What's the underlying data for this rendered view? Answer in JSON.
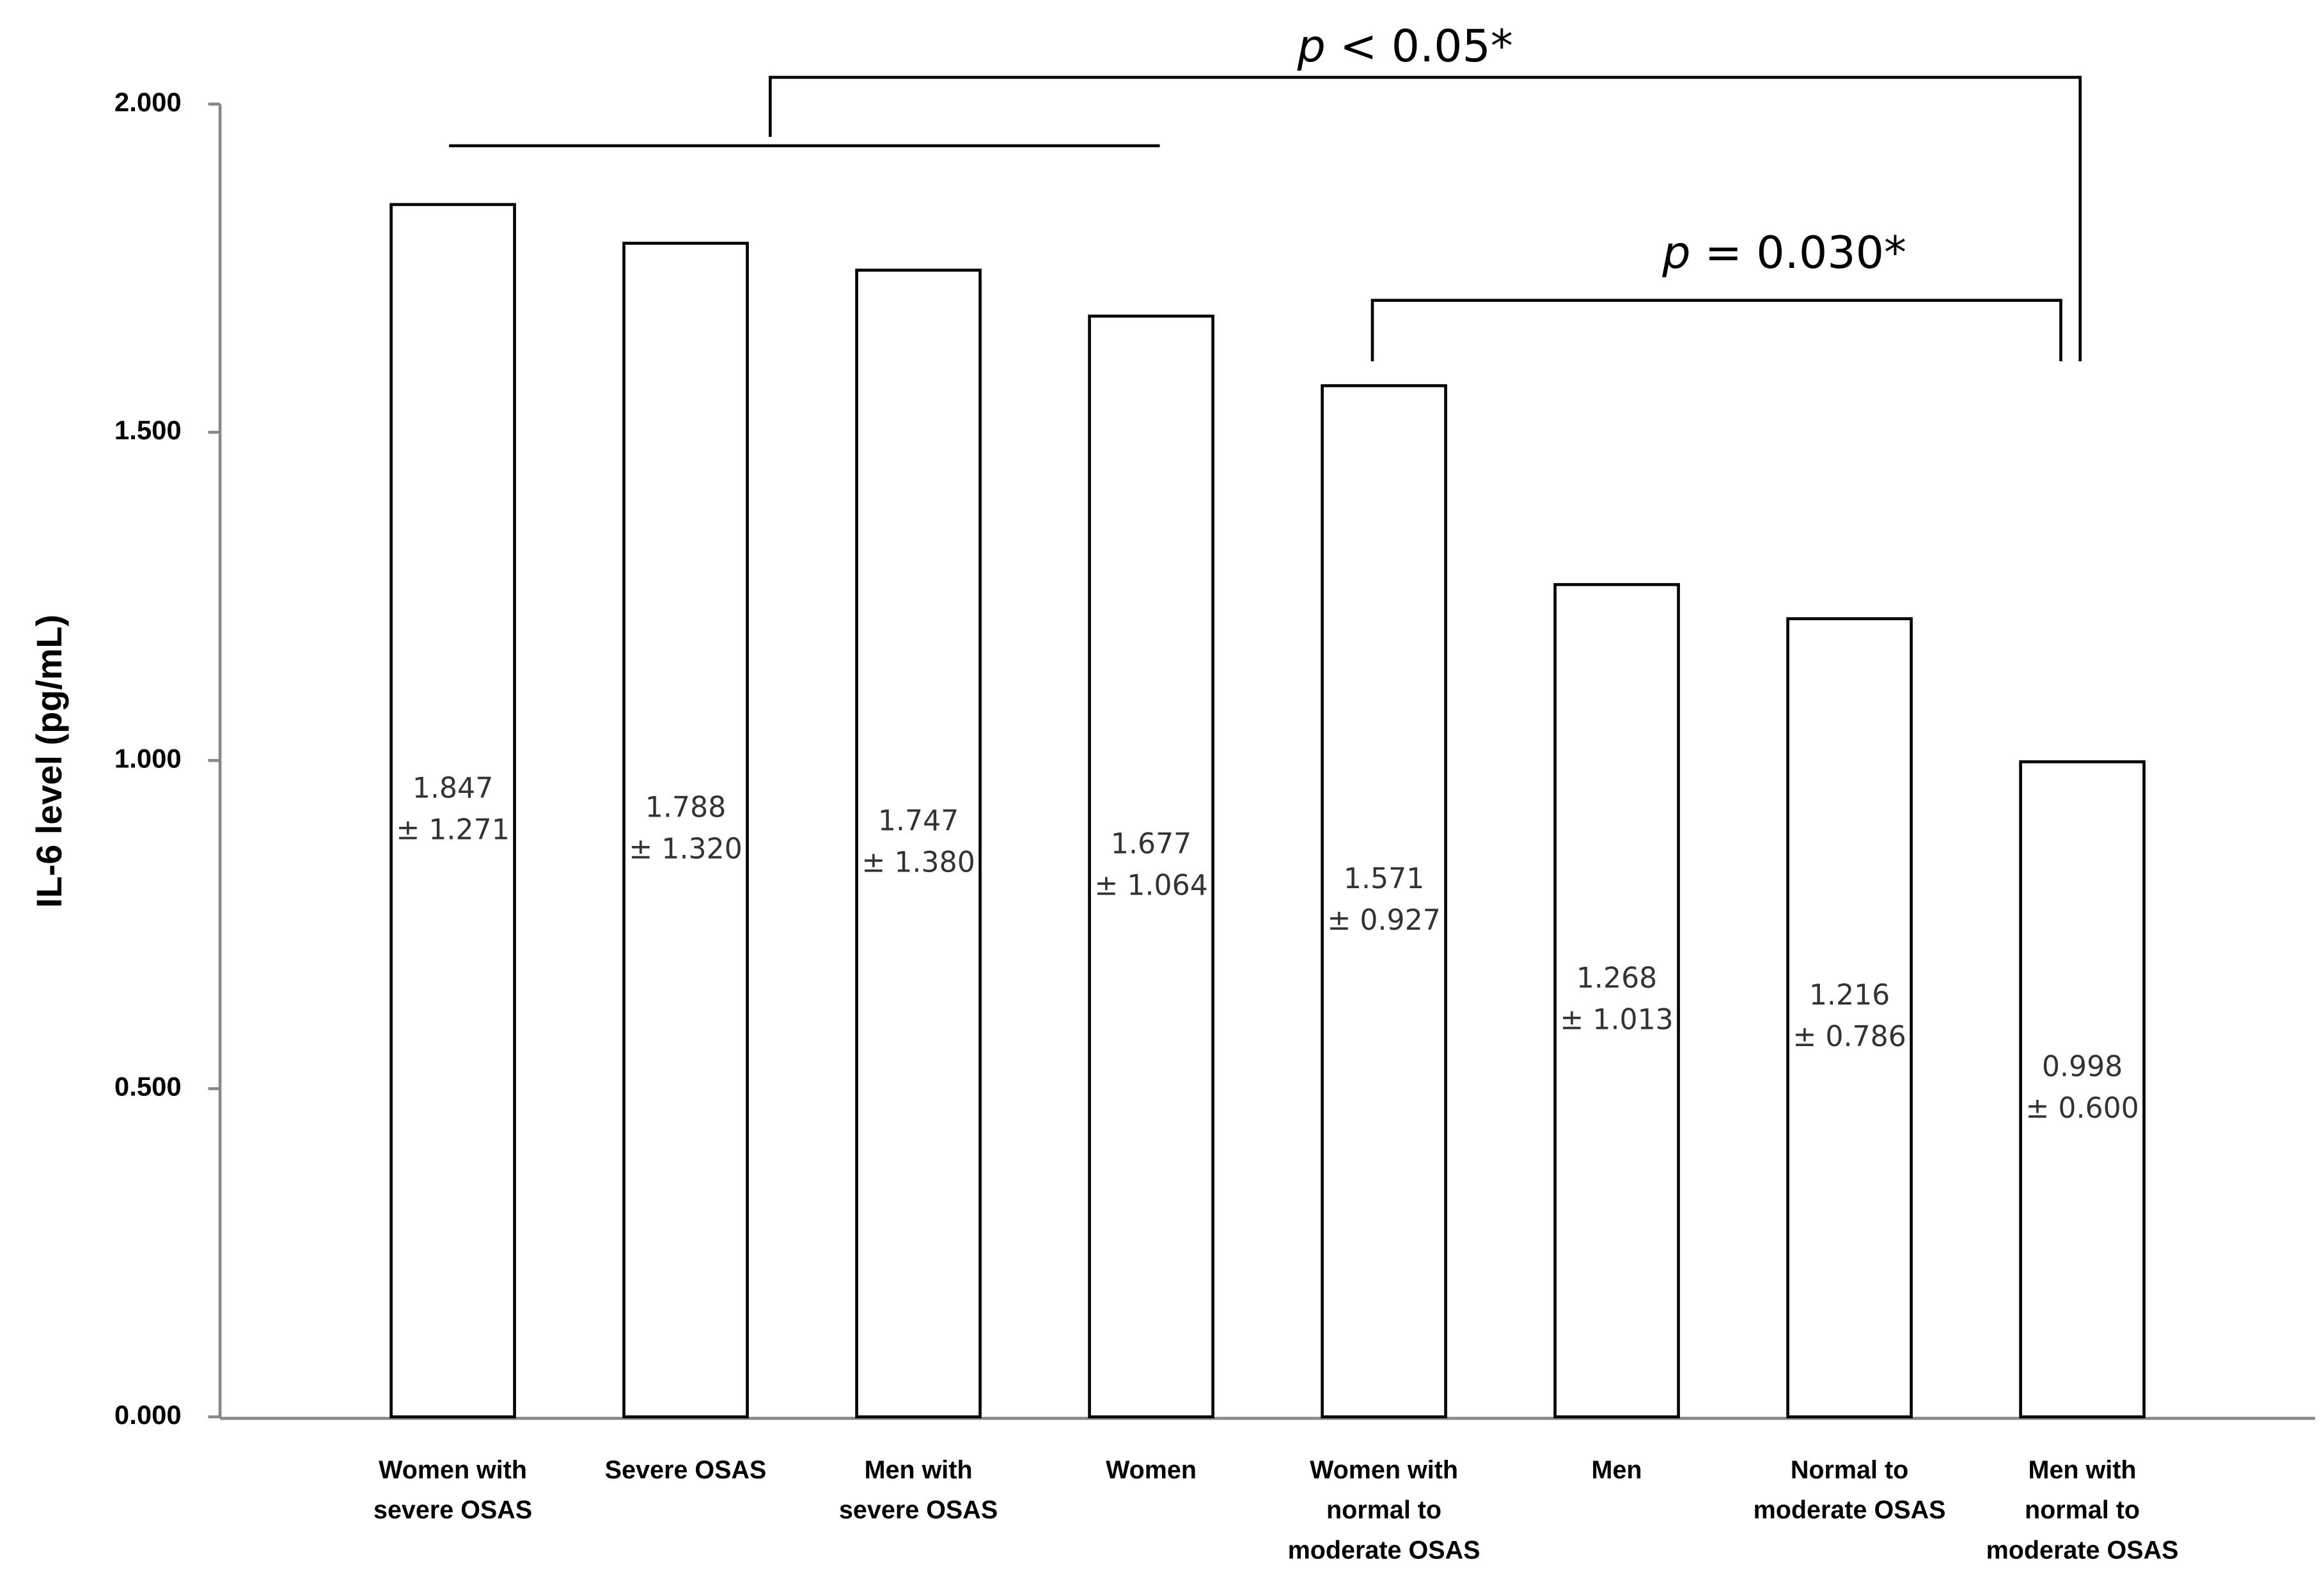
{
  "chart_data": {
    "type": "bar",
    "y_label": "IL-6 level (pg/mL)",
    "categories": [
      "Women with\nsevere OSAS",
      "Severe OSAS",
      "Men with\nsevere OSAS",
      "Women",
      "Women with\nnormal to\nmoderate OSAS",
      "Men",
      "Normal to\nmoderate OSAS",
      "Men with\nnormal to\nmoderate OSAS"
    ],
    "values": [
      1.847,
      1.788,
      1.747,
      1.677,
      1.571,
      1.268,
      1.216,
      0.998
    ],
    "errors": [
      1.271,
      1.32,
      1.38,
      1.064,
      0.927,
      1.013,
      0.786,
      0.6
    ],
    "error_labels": [
      "± 1.271",
      "± 1.320",
      "± 1.380",
      "± 1.064",
      "± 0.927",
      "± 1.013",
      "± 0.786",
      "± 0.600"
    ],
    "color": "#ffffff",
    "ylim": [
      0,
      2
    ],
    "yticks": [
      {
        "value": 0,
        "label": "0.000"
      },
      {
        "value": 0.5,
        "label": "0.500"
      },
      {
        "value": 1,
        "label": "1.000"
      },
      {
        "value": 1.5,
        "label": "1.500"
      },
      {
        "value": 2,
        "label": "2.000"
      }
    ],
    "annotations": [
      "p < 0.05*",
      "p = 0.030*"
    ]
  }
}
